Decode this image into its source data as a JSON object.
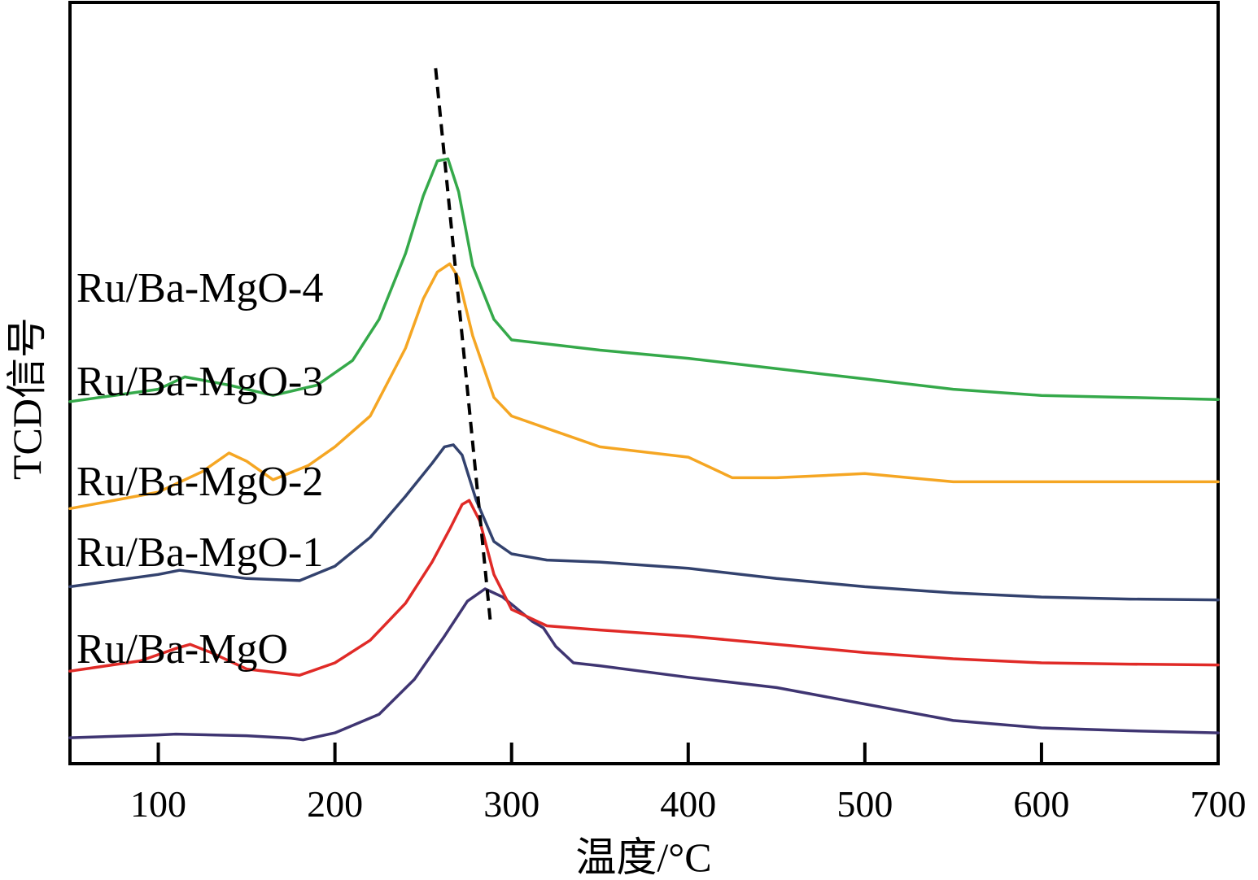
{
  "chart_data": {
    "type": "line",
    "title": "",
    "xlabel": "温度/°C",
    "ylabel": "TCD信号",
    "xlim": [
      50,
      700
    ],
    "x_ticks": [
      100,
      200,
      300,
      400,
      500,
      600,
      700
    ],
    "y_ticks_shown": false,
    "grid": false,
    "legend": "inline labels at left",
    "colors": {
      "Ru/Ba-MgO": "#3f3572",
      "Ru/Ba-MgO-1": "#e02a27",
      "Ru/Ba-MgO-2": "#33426e",
      "Ru/Ba-MgO-3": "#f5a623",
      "Ru/Ba-MgO-4": "#35a94a",
      "peak_guide": "#000000"
    },
    "series": [
      {
        "name": "Ru/Ba-MgO",
        "x": [
          50,
          100,
          110,
          150,
          175,
          182,
          200,
          225,
          245,
          262,
          275,
          285,
          295,
          305,
          312,
          318,
          325,
          335,
          350,
          400,
          450,
          500,
          550,
          600,
          650,
          700
        ],
        "y": [
          0.63,
          0.7,
          0.72,
          0.68,
          0.62,
          0.58,
          0.75,
          1.2,
          2.05,
          3.1,
          3.95,
          4.25,
          4.05,
          3.7,
          3.45,
          3.3,
          2.85,
          2.45,
          2.38,
          2.1,
          1.85,
          1.45,
          1.05,
          0.87,
          0.8,
          0.75
        ]
      },
      {
        "name": "Ru/Ba-MgO-1",
        "x": [
          50,
          90,
          110,
          118,
          130,
          150,
          180,
          200,
          220,
          240,
          255,
          265,
          272,
          276,
          282,
          290,
          300,
          320,
          350,
          400,
          450,
          500,
          550,
          600,
          650,
          700
        ],
        "y": [
          2.25,
          2.5,
          2.8,
          2.9,
          2.7,
          2.3,
          2.15,
          2.45,
          3.0,
          3.9,
          4.9,
          5.7,
          6.3,
          6.4,
          5.9,
          4.6,
          3.75,
          3.35,
          3.25,
          3.1,
          2.9,
          2.7,
          2.55,
          2.45,
          2.42,
          2.4
        ]
      },
      {
        "name": "Ru/Ba-MgO-2",
        "x": [
          50,
          100,
          112,
          150,
          180,
          200,
          220,
          240,
          255,
          262,
          267,
          272,
          280,
          290,
          300,
          320,
          350,
          400,
          450,
          500,
          550,
          600,
          650,
          700
        ],
        "y": [
          4.3,
          4.6,
          4.7,
          4.5,
          4.45,
          4.8,
          5.5,
          6.5,
          7.3,
          7.7,
          7.75,
          7.5,
          6.4,
          5.4,
          5.1,
          4.95,
          4.9,
          4.75,
          4.5,
          4.3,
          4.15,
          4.05,
          4.0,
          3.98
        ]
      },
      {
        "name": "Ru/Ba-MgO-3",
        "x": [
          50,
          100,
          125,
          140,
          150,
          165,
          185,
          200,
          220,
          240,
          250,
          258,
          265,
          270,
          278,
          290,
          300,
          320,
          350,
          400,
          425,
          450,
          500,
          550,
          600,
          650,
          700
        ],
        "y": [
          6.2,
          6.6,
          7.1,
          7.55,
          7.35,
          6.9,
          7.25,
          7.7,
          8.45,
          10.1,
          11.3,
          11.95,
          12.15,
          11.8,
          10.4,
          8.9,
          8.45,
          8.15,
          7.7,
          7.45,
          6.95,
          6.95,
          7.05,
          6.85,
          6.85,
          6.85,
          6.85
        ]
      },
      {
        "name": "Ru/Ba-MgO-4",
        "x": [
          50,
          100,
          115,
          140,
          165,
          190,
          210,
          225,
          240,
          250,
          258,
          264,
          270,
          278,
          290,
          300,
          320,
          350,
          400,
          450,
          500,
          550,
          600,
          650,
          700
        ],
        "y": [
          8.8,
          9.1,
          9.4,
          9.2,
          8.95,
          9.2,
          9.8,
          10.8,
          12.4,
          13.8,
          14.65,
          14.7,
          13.9,
          12.1,
          10.8,
          10.3,
          10.2,
          10.05,
          9.85,
          9.6,
          9.35,
          9.1,
          8.95,
          8.9,
          8.85
        ]
      }
    ],
    "peak_guide": {
      "x": [
        257,
        288
      ],
      "y": [
        16.9,
        3.45
      ]
    }
  }
}
